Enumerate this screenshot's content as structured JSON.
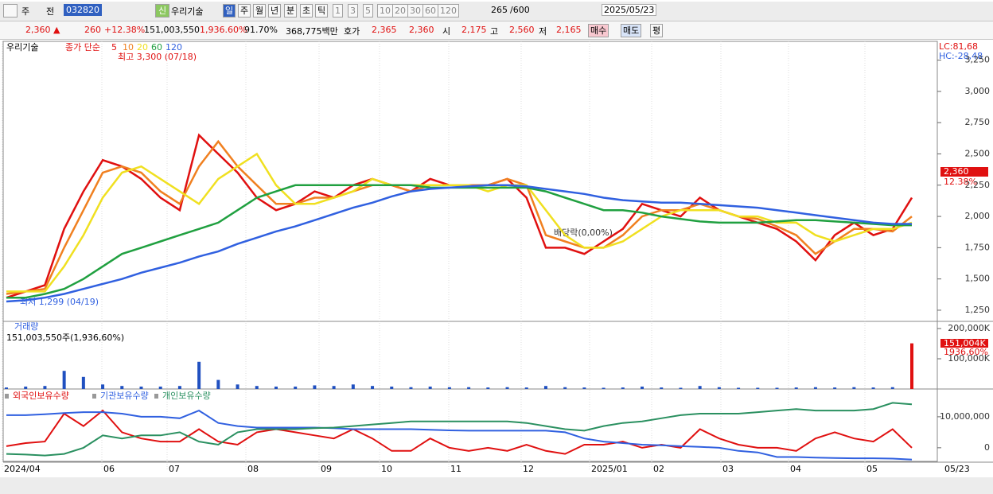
{
  "toolbar": {
    "items": [
      "주",
      "전",
      "032820",
      "우리기술",
      "일",
      "주",
      "월",
      "년",
      "분",
      "초",
      "틱",
      "1",
      "3",
      "5",
      "10",
      "20",
      "30",
      "60",
      "120",
      "265",
      "/600",
      "2025/05/23"
    ]
  },
  "quote": {
    "items": [
      "2,360",
      "▲",
      "260",
      "+12.38%",
      "151,003,550",
      "1,936.60%",
      "91.70%",
      "368,775백만",
      "호가",
      "2,365",
      "2,360",
      "시",
      "2,175",
      "고",
      "2,560",
      "저",
      "2,165",
      "매수",
      "매도",
      "평"
    ]
  },
  "dates": [
    "2024/04",
    "06",
    "07",
    "08",
    "09",
    "10",
    "11",
    "12",
    "2025/01",
    "02",
    "03",
    "04",
    "05",
    "05/23"
  ],
  "chart_data": [
    {
      "type": "line",
      "title": "우리기술",
      "subtitle": "종가 단순",
      "annotations": [
        "최고 3,300 (07/18)",
        "최저 1,299 (04/19)",
        "배당락(0,00%)"
      ],
      "right_labels": [
        "LC:81,68",
        "HC:-28,48"
      ],
      "last_price": "2,360",
      "last_change": "12.38%",
      "ylim": [
        1167,
        3400
      ],
      "yticks": [
        {
          "value": 1250,
          "label": "1,250"
        },
        {
          "value": 1500,
          "label": "1,500"
        },
        {
          "value": 1750,
          "label": "1,750"
        },
        {
          "value": 2000,
          "label": "2,000"
        },
        {
          "value": 2250,
          "label": "2,250"
        },
        {
          "value": 2500,
          "label": "2,500"
        },
        {
          "value": 2750,
          "label": "2,750"
        },
        {
          "value": 3000,
          "label": "3,000"
        },
        {
          "value": 3250,
          "label": "3,250"
        }
      ],
      "series": [
        {
          "name": "5",
          "color": "#e01010",
          "values": [
            1350,
            1400,
            1450,
            1900,
            2200,
            2450,
            2400,
            2300,
            2150,
            2050,
            2650,
            2500,
            2350,
            2150,
            2050,
            2100,
            2200,
            2150,
            2250,
            2300,
            2250,
            2200,
            2300,
            2250,
            2250,
            2250,
            2300,
            2150,
            1750,
            1750,
            1700,
            1800,
            1900,
            2100,
            2050,
            2000,
            2150,
            2050,
            2000,
            1950,
            1900,
            1800,
            1650,
            1850,
            1950,
            1850,
            1900,
            2150
          ]
        },
        {
          "name": "10",
          "color": "#f08020",
          "values": [
            1380,
            1400,
            1420,
            1750,
            2050,
            2350,
            2400,
            2350,
            2200,
            2100,
            2400,
            2600,
            2400,
            2250,
            2100,
            2100,
            2150,
            2150,
            2200,
            2250,
            2250,
            2200,
            2250,
            2250,
            2250,
            2250,
            2300,
            2250,
            1850,
            1800,
            1750,
            1750,
            1850,
            2000,
            2050,
            2050,
            2100,
            2050,
            2000,
            1980,
            1920,
            1850,
            1700,
            1800,
            1900,
            1900,
            1880,
            2000
          ]
        },
        {
          "name": "20",
          "color": "#f0e020",
          "values": [
            1400,
            1400,
            1400,
            1600,
            1850,
            2150,
            2350,
            2400,
            2300,
            2200,
            2100,
            2300,
            2400,
            2500,
            2250,
            2100,
            2100,
            2150,
            2200,
            2300,
            2250,
            2250,
            2250,
            2250,
            2250,
            2200,
            2250,
            2250,
            2050,
            1850,
            1750,
            1750,
            1800,
            1900,
            2000,
            2050,
            2050,
            2050,
            2000,
            2000,
            1950,
            1950,
            1850,
            1800,
            1850,
            1900,
            1900,
            1950
          ]
        },
        {
          "name": "60",
          "color": "#20a040",
          "values": [
            1350,
            1350,
            1380,
            1420,
            1500,
            1600,
            1700,
            1750,
            1800,
            1850,
            1900,
            1950,
            2050,
            2150,
            2200,
            2250,
            2250,
            2250,
            2250,
            2250,
            2250,
            2250,
            2230,
            2230,
            2230,
            2230,
            2230,
            2230,
            2200,
            2150,
            2100,
            2050,
            2050,
            2030,
            2000,
            1980,
            1960,
            1950,
            1950,
            1950,
            1960,
            1970,
            1970,
            1960,
            1950,
            1940,
            1930,
            1930
          ]
        },
        {
          "name": "120",
          "color": "#3060e0",
          "values": [
            1320,
            1330,
            1350,
            1380,
            1420,
            1460,
            1500,
            1550,
            1590,
            1630,
            1680,
            1720,
            1780,
            1830,
            1880,
            1920,
            1970,
            2020,
            2070,
            2110,
            2160,
            2200,
            2220,
            2230,
            2240,
            2250,
            2250,
            2240,
            2220,
            2200,
            2180,
            2150,
            2130,
            2120,
            2110,
            2110,
            2100,
            2090,
            2080,
            2070,
            2050,
            2030,
            2010,
            1990,
            1970,
            1950,
            1940,
            1940
          ]
        }
      ]
    },
    {
      "type": "bar",
      "title": "거래량",
      "subtitle": "151,003,550주(1,936,60%)",
      "last_label": "151,004K",
      "last_change": "1936,60%",
      "ylim": [
        0,
        221000
      ],
      "yticks": [
        {
          "value": 100000,
          "label": "100,000K"
        },
        {
          "value": 200000,
          "label": "200,000K"
        }
      ],
      "series": [
        {
          "name": "거래량",
          "color": "#2050c0",
          "values": [
            5000,
            8000,
            10000,
            60000,
            40000,
            15000,
            10000,
            8000,
            8000,
            10000,
            90000,
            30000,
            15000,
            10000,
            8000,
            8000,
            12000,
            10000,
            15000,
            10000,
            8000,
            6000,
            8000,
            6000,
            6000,
            5000,
            6000,
            5000,
            10000,
            6000,
            5000,
            4000,
            5000,
            8000,
            5000,
            4000,
            10000,
            6000,
            4000,
            4000,
            4000,
            5000,
            6000,
            5000,
            6000,
            5000,
            6000,
            151004
          ]
        }
      ]
    },
    {
      "type": "line",
      "ylim": [
        -4400000,
        18700000
      ],
      "yticks": [
        0,
        {
          "value": 10000000,
          "label": "10,000,000"
        }
      ],
      "series": [
        {
          "name": "외국인보유수량",
          "color": "#e01010",
          "values": [
            500000,
            1500000,
            2000000,
            11000000,
            7000000,
            12000000,
            5000000,
            3000000,
            2000000,
            2000000,
            6000000,
            2000000,
            1000000,
            5000000,
            6000000,
            5000000,
            4000000,
            3000000,
            6000000,
            3000000,
            -1000000,
            -1000000,
            3000000,
            0,
            -1000000,
            0,
            -1000000,
            1000000,
            -1000000,
            -2000000,
            1000000,
            1000000,
            2000000,
            0,
            1000000,
            0,
            6000000,
            3000000,
            1000000,
            0,
            0,
            -1000000,
            3000000,
            5000000,
            3000000,
            2000000,
            6000000,
            0
          ]
        },
        {
          "name": "기관보유수량",
          "color": "#3060e0",
          "values": [
            10500000,
            10500000,
            10800000,
            11200000,
            11500000,
            11500000,
            11000000,
            10000000,
            10000000,
            9500000,
            12000000,
            8000000,
            7000000,
            6500000,
            6500000,
            6500000,
            6500000,
            6300000,
            6000000,
            6000000,
            6000000,
            6000000,
            5800000,
            5600000,
            5500000,
            5500000,
            5500000,
            5500000,
            5500000,
            5000000,
            3000000,
            2000000,
            1500000,
            1000000,
            800000,
            500000,
            300000,
            0,
            -1000000,
            -1500000,
            -3000000,
            -3000000,
            -3200000,
            -3300000,
            -3400000,
            -3400000,
            -3500000,
            -3800000
          ]
        },
        {
          "name": "개인보유수량",
          "color": "#2a9060",
          "values": [
            -2000000,
            -2200000,
            -2500000,
            -2000000,
            0,
            4000000,
            3000000,
            4000000,
            4000000,
            5000000,
            2000000,
            1000000,
            5000000,
            6000000,
            6000000,
            6000000,
            6300000,
            6500000,
            7000000,
            7500000,
            8000000,
            8500000,
            8500000,
            8500000,
            8500000,
            8500000,
            8500000,
            8000000,
            7000000,
            6000000,
            5500000,
            7000000,
            8000000,
            8500000,
            9500000,
            10500000,
            11000000,
            11000000,
            11000000,
            11500000,
            12000000,
            12500000,
            12000000,
            12000000,
            12000000,
            12500000,
            14500000,
            14000000
          ]
        }
      ]
    }
  ]
}
